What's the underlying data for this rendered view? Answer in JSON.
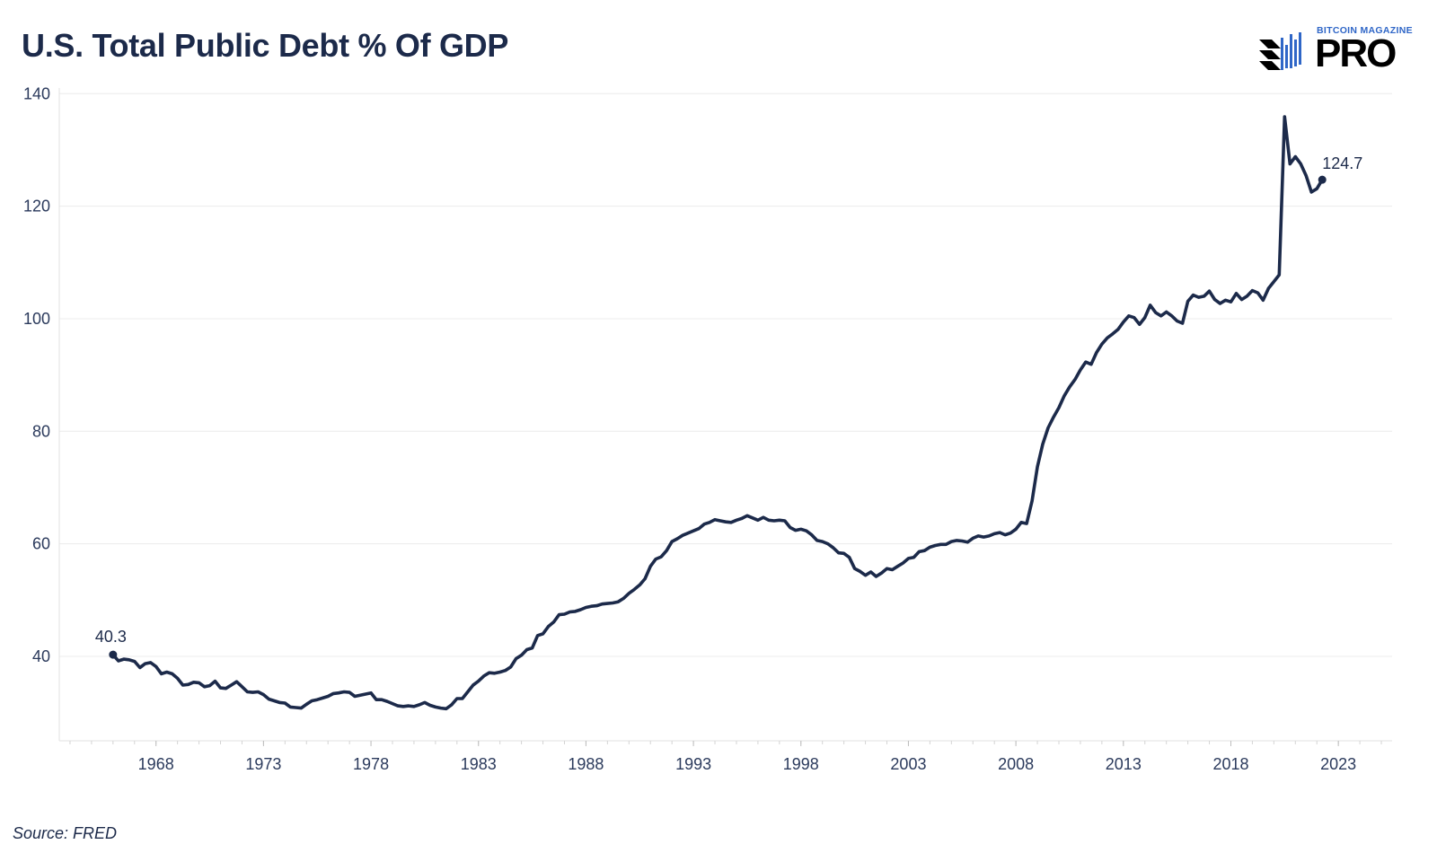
{
  "header": {
    "title": "U.S. Total Public Debt % Of GDP"
  },
  "brand": {
    "top_text": "BITCOIN MAGAZINE",
    "main_text": "PRO",
    "accent_color": "#2f66c7",
    "icon": "candlestick-logo-icon"
  },
  "footer": {
    "source": "Source: FRED"
  },
  "chart_data": {
    "type": "line",
    "title": "U.S. Total Public Debt % Of GDP",
    "xlabel": "",
    "ylabel": "",
    "xlim": [
      1963.5,
      2025.5
    ],
    "ylim": [
      25,
      141
    ],
    "yticks": [
      40,
      60,
      80,
      100,
      120,
      140
    ],
    "xticks": [
      1968,
      1973,
      1978,
      1983,
      1988,
      1993,
      1998,
      2003,
      2008,
      2013,
      2018,
      2023
    ],
    "grid": "horizontal",
    "line_color": "#1c2a4a",
    "series": [
      {
        "x": [
          1966.0,
          1966.25,
          1966.5,
          1966.75,
          1967.0,
          1967.25,
          1967.5,
          1967.75,
          1968.0,
          1968.25,
          1968.5,
          1968.75,
          1969.0,
          1969.25,
          1969.5,
          1969.75,
          1970.0,
          1970.25,
          1970.5,
          1970.75,
          1971.0,
          1971.25,
          1971.5,
          1971.75,
          1972.0,
          1972.25,
          1972.5,
          1972.75,
          1973.0,
          1973.25,
          1973.5,
          1973.75,
          1974.0,
          1974.25,
          1974.5,
          1974.75,
          1975.0,
          1975.25,
          1975.5,
          1975.75,
          1976.0,
          1976.25,
          1976.5,
          1976.75,
          1977.0,
          1977.25,
          1977.5,
          1977.75,
          1978.0,
          1978.25,
          1978.5,
          1978.75,
          1979.0,
          1979.25,
          1979.5,
          1979.75,
          1980.0,
          1980.25,
          1980.5,
          1980.75,
          1981.0,
          1981.25,
          1981.5,
          1981.75,
          1982.0,
          1982.25,
          1982.5,
          1982.75,
          1983.0,
          1983.25,
          1983.5,
          1983.75,
          1984.0,
          1984.25,
          1984.5,
          1984.75,
          1985.0,
          1985.25,
          1985.5,
          1985.75,
          1986.0,
          1986.25,
          1986.5,
          1986.75,
          1987.0,
          1987.25,
          1987.5,
          1987.75,
          1988.0,
          1988.25,
          1988.5,
          1988.75,
          1989.0,
          1989.25,
          1989.5,
          1989.75,
          1990.0,
          1990.25,
          1990.5,
          1990.75,
          1991.0,
          1991.25,
          1991.5,
          1991.75,
          1992.0,
          1992.25,
          1992.5,
          1992.75,
          1993.0,
          1993.25,
          1993.5,
          1993.75,
          1994.0,
          1994.25,
          1994.5,
          1994.75,
          1995.0,
          1995.25,
          1995.5,
          1995.75,
          1996.0,
          1996.25,
          1996.5,
          1996.75,
          1997.0,
          1997.25,
          1997.5,
          1997.75,
          1998.0,
          1998.25,
          1998.5,
          1998.75,
          1999.0,
          1999.25,
          1999.5,
          1999.75,
          2000.0,
          2000.25,
          2000.5,
          2000.75,
          2001.0,
          2001.25,
          2001.5,
          2001.75,
          2002.0,
          2002.25,
          2002.5,
          2002.75,
          2003.0,
          2003.25,
          2003.5,
          2003.75,
          2004.0,
          2004.25,
          2004.5,
          2004.75,
          2005.0,
          2005.25,
          2005.5,
          2005.75,
          2006.0,
          2006.25,
          2006.5,
          2006.75,
          2007.0,
          2007.25,
          2007.5,
          2007.75,
          2008.0,
          2008.25,
          2008.5,
          2008.75,
          2009.0,
          2009.25,
          2009.5,
          2009.75,
          2010.0,
          2010.25,
          2010.5,
          2010.75,
          2011.0,
          2011.25,
          2011.5,
          2011.75,
          2012.0,
          2012.25,
          2012.5,
          2012.75,
          2013.0,
          2013.25,
          2013.5,
          2013.75,
          2014.0,
          2014.25,
          2014.5,
          2014.75,
          2015.0,
          2015.25,
          2015.5,
          2015.75,
          2016.0,
          2016.25,
          2016.5,
          2016.75,
          2017.0,
          2017.25,
          2017.5,
          2017.75,
          2018.0,
          2018.25,
          2018.5,
          2018.75,
          2019.0,
          2019.25,
          2019.5,
          2019.75,
          2020.0,
          2020.25,
          2020.5,
          2020.75,
          2021.0,
          2021.25,
          2021.5,
          2021.75,
          2022.0,
          2022.25
        ],
        "values": [
          40.3,
          39.2,
          39.5,
          39.4,
          39.1,
          38.0,
          38.7,
          38.9,
          38.2,
          36.9,
          37.2,
          36.9,
          36.1,
          34.9,
          35.0,
          35.4,
          35.3,
          34.6,
          34.8,
          35.6,
          34.4,
          34.3,
          34.9,
          35.5,
          34.6,
          33.7,
          33.6,
          33.7,
          33.2,
          32.4,
          32.1,
          31.8,
          31.7,
          31.0,
          30.9,
          30.8,
          31.5,
          32.1,
          32.3,
          32.6,
          32.9,
          33.4,
          33.5,
          33.7,
          33.6,
          32.9,
          33.1,
          33.3,
          33.5,
          32.3,
          32.3,
          32.0,
          31.6,
          31.2,
          31.1,
          31.2,
          31.1,
          31.4,
          31.8,
          31.3,
          31.0,
          30.8,
          30.7,
          31.4,
          32.5,
          32.5,
          33.7,
          34.9,
          35.6,
          36.5,
          37.1,
          37.0,
          37.2,
          37.5,
          38.1,
          39.6,
          40.2,
          41.2,
          41.5,
          43.7,
          44.0,
          45.3,
          46.1,
          47.4,
          47.5,
          47.9,
          48.0,
          48.3,
          48.7,
          48.9,
          49.0,
          49.3,
          49.4,
          49.5,
          49.7,
          50.3,
          51.2,
          51.9,
          52.7,
          53.8,
          56.0,
          57.3,
          57.7,
          58.8,
          60.4,
          60.9,
          61.5,
          61.9,
          62.3,
          62.7,
          63.5,
          63.8,
          64.3,
          64.1,
          63.9,
          63.8,
          64.2,
          64.5,
          65.0,
          64.6,
          64.2,
          64.7,
          64.2,
          64.1,
          64.2,
          64.1,
          62.9,
          62.4,
          62.6,
          62.3,
          61.6,
          60.6,
          60.4,
          60.0,
          59.3,
          58.4,
          58.3,
          57.6,
          55.6,
          55.1,
          54.4,
          55.0,
          54.2,
          54.8,
          55.6,
          55.4,
          56.0,
          56.6,
          57.4,
          57.6,
          58.6,
          58.8,
          59.4,
          59.7,
          59.9,
          59.9,
          60.4,
          60.6,
          60.5,
          60.3,
          61.0,
          61.4,
          61.2,
          61.4,
          61.8,
          62.0,
          61.6,
          61.9,
          62.6,
          63.8,
          63.6,
          67.6,
          73.7,
          77.7,
          80.6,
          82.5,
          84.2,
          86.3,
          87.9,
          89.2,
          90.9,
          92.3,
          91.9,
          94.0,
          95.5,
          96.6,
          97.3,
          98.1,
          99.4,
          100.5,
          100.2,
          99.0,
          100.2,
          102.4,
          101.1,
          100.5,
          101.2,
          100.5,
          99.6,
          99.2,
          103.1,
          104.2,
          103.8,
          104.0,
          104.9,
          103.4,
          102.7,
          103.3,
          103.0,
          104.5,
          103.4,
          104.0,
          105.0,
          104.6,
          103.3,
          105.4,
          106.6,
          107.8,
          135.9,
          127.5,
          128.8,
          127.5,
          125.4,
          122.5,
          123.1,
          124.7
        ]
      }
    ],
    "annotations": [
      {
        "x": 1966.0,
        "y": 40.3,
        "text": "40.3"
      },
      {
        "x": 2022.25,
        "y": 124.7,
        "text": "124.7"
      }
    ]
  }
}
